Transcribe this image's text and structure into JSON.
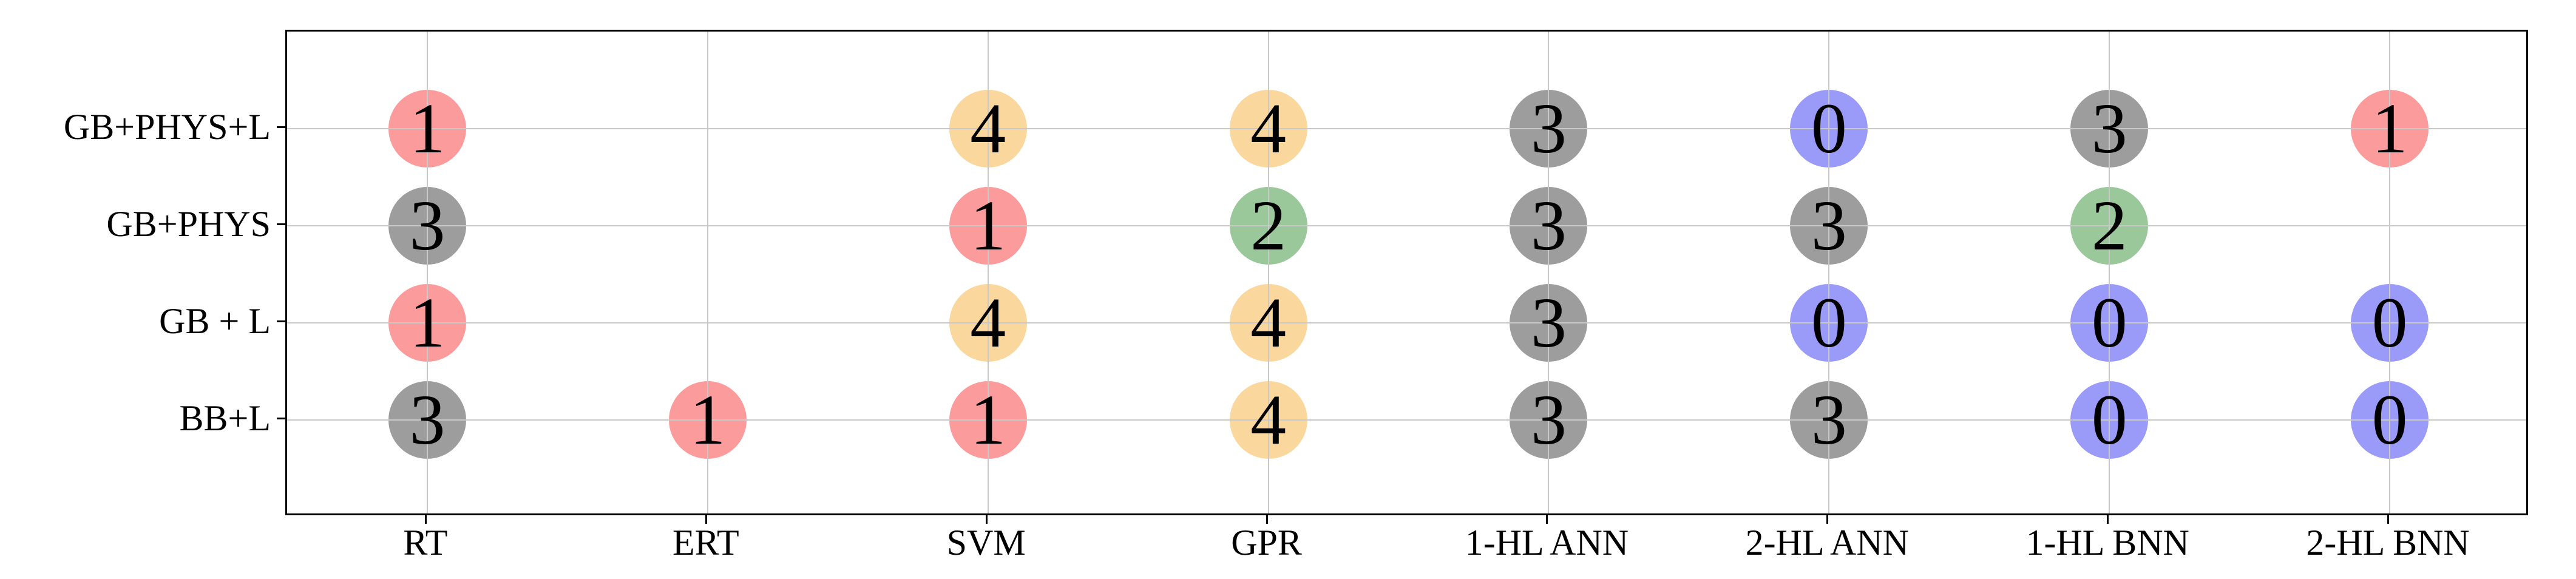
{
  "figure": {
    "background_color": "#ffffff",
    "frame_color": "#000000",
    "grid_color": "#c9c9c9",
    "text_color": "#000000"
  },
  "chart_data": {
    "type": "scatter",
    "title": "",
    "xlabel": "",
    "ylabel": "",
    "grid": true,
    "legend": false,
    "x_categories": [
      "RT",
      "ERT",
      "SVM",
      "GPR",
      "1-HL ANN",
      "2-HL ANN",
      "1-HL BNN",
      "2-HL BNN"
    ],
    "y_categories": [
      "GB+PHYS+L",
      "GB+PHYS",
      "GB + L",
      "BB+L"
    ],
    "values_matrix": [
      [
        1,
        null,
        4,
        4,
        3,
        0,
        3,
        1
      ],
      [
        3,
        null,
        1,
        2,
        3,
        3,
        2,
        null
      ],
      [
        1,
        null,
        4,
        4,
        3,
        0,
        0,
        0
      ],
      [
        3,
        1,
        1,
        4,
        3,
        3,
        0,
        0
      ]
    ],
    "value_colors": {
      "0": "#9a9af8",
      "1": "#fb9b9b",
      "2": "#9bc89a",
      "3": "#9d9d9d",
      "4": "#fad79d"
    },
    "marker_diameter_px": 128
  }
}
